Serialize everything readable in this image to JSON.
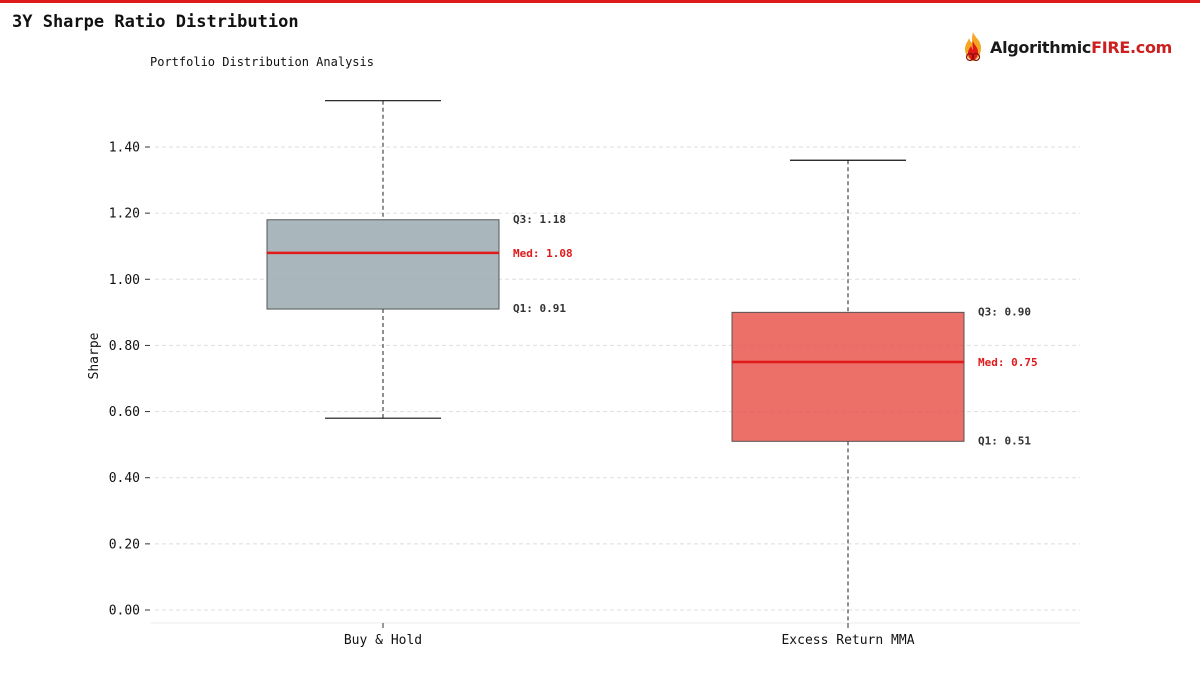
{
  "header": {
    "title": "3Y Sharpe Ratio Distribution",
    "accent_color": "#e0191b"
  },
  "logo": {
    "name_part1": "Algorithmic",
    "name_part2": "FIRE.com",
    "icon": "flame-logo-icon"
  },
  "chart_data": {
    "type": "box",
    "subtitle": "Portfolio Distribution Analysis",
    "ylabel": "Sharpe",
    "xlabel": "",
    "ylim": [
      -0.04,
      1.6
    ],
    "yticks": [
      0.0,
      0.2,
      0.4,
      0.6,
      0.8,
      1.0,
      1.2,
      1.4
    ],
    "ytick_labels": [
      "0.00",
      "0.20",
      "0.40",
      "0.60",
      "0.80",
      "1.00",
      "1.20",
      "1.40"
    ],
    "grid": true,
    "categories": [
      "Buy & Hold",
      "Excess Return MMA"
    ],
    "boxes": [
      {
        "category": "Buy & Hold",
        "whisker_low": 0.58,
        "q1": 0.91,
        "median": 1.08,
        "q3": 1.18,
        "whisker_high": 1.54,
        "color": "#9aaab2",
        "q1_label": "Q1: 0.91",
        "median_label": "Med: 1.08",
        "q3_label": "Q3: 1.18"
      },
      {
        "category": "Excess Return MMA",
        "whisker_low": -0.04,
        "q1": 0.51,
        "median": 0.75,
        "q3": 0.9,
        "whisker_high": 1.36,
        "color": "#e9564e",
        "q1_label": "Q1: 0.51",
        "median_label": "Med: 0.75",
        "q3_label": "Q3: 0.90"
      }
    ],
    "median_color": "#e0191b",
    "annotation_color": "#333333"
  }
}
